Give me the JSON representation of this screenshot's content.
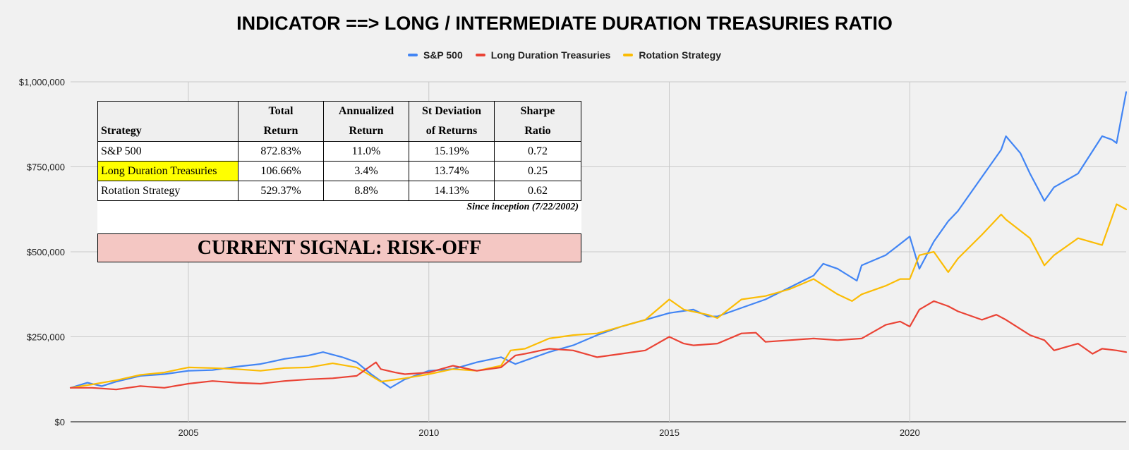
{
  "chart_data": {
    "type": "line",
    "title": "INDICATOR ==> LONG / INTERMEDIATE DURATION TREASURIES RATIO",
    "xlabel": "",
    "ylabel": "",
    "x_range": [
      2002.55,
      2024.5
    ],
    "ylim": [
      0,
      1000000
    ],
    "y_ticks": [
      0,
      250000,
      500000,
      750000,
      1000000
    ],
    "y_tick_labels": [
      "$0",
      "$250,000",
      "$500,000",
      "$750,000",
      "$1,000,000"
    ],
    "x_ticks": [
      2005,
      2010,
      2015,
      2020
    ],
    "x_tick_labels": [
      "2005",
      "2010",
      "2015",
      "2020"
    ],
    "grid": true,
    "legend_position": "top",
    "series": [
      {
        "name": "S&P 500",
        "color": "#4285f4",
        "points": [
          [
            2002.55,
            100000
          ],
          [
            2002.9,
            115000
          ],
          [
            2003.2,
            105000
          ],
          [
            2003.5,
            118000
          ],
          [
            2004.0,
            135000
          ],
          [
            2004.5,
            140000
          ],
          [
            2005.0,
            150000
          ],
          [
            2005.5,
            152000
          ],
          [
            2006.0,
            162000
          ],
          [
            2006.5,
            170000
          ],
          [
            2007.0,
            185000
          ],
          [
            2007.5,
            195000
          ],
          [
            2007.8,
            205000
          ],
          [
            2008.2,
            190000
          ],
          [
            2008.5,
            175000
          ],
          [
            2008.8,
            140000
          ],
          [
            2009.0,
            120000
          ],
          [
            2009.2,
            100000
          ],
          [
            2009.5,
            125000
          ],
          [
            2010.0,
            150000
          ],
          [
            2010.5,
            155000
          ],
          [
            2011.0,
            175000
          ],
          [
            2011.5,
            190000
          ],
          [
            2011.8,
            170000
          ],
          [
            2012.0,
            180000
          ],
          [
            2012.5,
            205000
          ],
          [
            2013.0,
            225000
          ],
          [
            2013.5,
            255000
          ],
          [
            2014.0,
            280000
          ],
          [
            2014.5,
            300000
          ],
          [
            2015.0,
            320000
          ],
          [
            2015.5,
            330000
          ],
          [
            2015.8,
            310000
          ],
          [
            2016.0,
            310000
          ],
          [
            2016.5,
            335000
          ],
          [
            2017.0,
            360000
          ],
          [
            2017.5,
            395000
          ],
          [
            2018.0,
            430000
          ],
          [
            2018.2,
            465000
          ],
          [
            2018.5,
            450000
          ],
          [
            2018.9,
            415000
          ],
          [
            2019.0,
            460000
          ],
          [
            2019.5,
            490000
          ],
          [
            2020.0,
            545000
          ],
          [
            2020.2,
            450000
          ],
          [
            2020.5,
            530000
          ],
          [
            2020.8,
            590000
          ],
          [
            2021.0,
            620000
          ],
          [
            2021.5,
            720000
          ],
          [
            2021.9,
            800000
          ],
          [
            2022.0,
            840000
          ],
          [
            2022.3,
            790000
          ],
          [
            2022.5,
            730000
          ],
          [
            2022.8,
            650000
          ],
          [
            2023.0,
            690000
          ],
          [
            2023.5,
            730000
          ],
          [
            2024.0,
            840000
          ],
          [
            2024.2,
            830000
          ],
          [
            2024.3,
            820000
          ],
          [
            2024.5,
            970000
          ]
        ]
      },
      {
        "name": "Long Duration Treasuries",
        "color": "#ea4335",
        "points": [
          [
            2002.55,
            100000
          ],
          [
            2003.0,
            100000
          ],
          [
            2003.5,
            95000
          ],
          [
            2004.0,
            105000
          ],
          [
            2004.5,
            100000
          ],
          [
            2005.0,
            112000
          ],
          [
            2005.5,
            120000
          ],
          [
            2006.0,
            115000
          ],
          [
            2006.5,
            112000
          ],
          [
            2007.0,
            120000
          ],
          [
            2007.5,
            125000
          ],
          [
            2008.0,
            128000
          ],
          [
            2008.5,
            135000
          ],
          [
            2008.9,
            175000
          ],
          [
            2009.0,
            155000
          ],
          [
            2009.3,
            145000
          ],
          [
            2009.5,
            140000
          ],
          [
            2010.0,
            145000
          ],
          [
            2010.5,
            165000
          ],
          [
            2011.0,
            150000
          ],
          [
            2011.5,
            160000
          ],
          [
            2011.8,
            195000
          ],
          [
            2012.0,
            200000
          ],
          [
            2012.5,
            215000
          ],
          [
            2013.0,
            210000
          ],
          [
            2013.5,
            190000
          ],
          [
            2014.0,
            200000
          ],
          [
            2014.5,
            210000
          ],
          [
            2015.0,
            250000
          ],
          [
            2015.3,
            230000
          ],
          [
            2015.5,
            225000
          ],
          [
            2016.0,
            230000
          ],
          [
            2016.5,
            260000
          ],
          [
            2016.8,
            262000
          ],
          [
            2017.0,
            235000
          ],
          [
            2017.5,
            240000
          ],
          [
            2018.0,
            245000
          ],
          [
            2018.5,
            240000
          ],
          [
            2019.0,
            245000
          ],
          [
            2019.5,
            285000
          ],
          [
            2019.8,
            295000
          ],
          [
            2020.0,
            280000
          ],
          [
            2020.2,
            330000
          ],
          [
            2020.5,
            355000
          ],
          [
            2020.8,
            340000
          ],
          [
            2021.0,
            325000
          ],
          [
            2021.5,
            300000
          ],
          [
            2021.8,
            315000
          ],
          [
            2022.0,
            300000
          ],
          [
            2022.5,
            255000
          ],
          [
            2022.8,
            240000
          ],
          [
            2023.0,
            210000
          ],
          [
            2023.5,
            230000
          ],
          [
            2023.8,
            200000
          ],
          [
            2024.0,
            215000
          ],
          [
            2024.3,
            210000
          ],
          [
            2024.5,
            205000
          ]
        ]
      },
      {
        "name": "Rotation Strategy",
        "color": "#fbbc04",
        "points": [
          [
            2002.55,
            100000
          ],
          [
            2003.0,
            110000
          ],
          [
            2003.5,
            122000
          ],
          [
            2004.0,
            138000
          ],
          [
            2004.5,
            145000
          ],
          [
            2005.0,
            160000
          ],
          [
            2005.5,
            158000
          ],
          [
            2006.0,
            155000
          ],
          [
            2006.5,
            150000
          ],
          [
            2007.0,
            158000
          ],
          [
            2007.5,
            160000
          ],
          [
            2008.0,
            172000
          ],
          [
            2008.5,
            160000
          ],
          [
            2008.8,
            135000
          ],
          [
            2009.0,
            118000
          ],
          [
            2009.5,
            128000
          ],
          [
            2010.0,
            140000
          ],
          [
            2010.5,
            155000
          ],
          [
            2011.0,
            150000
          ],
          [
            2011.5,
            165000
          ],
          [
            2011.7,
            210000
          ],
          [
            2012.0,
            215000
          ],
          [
            2012.5,
            245000
          ],
          [
            2013.0,
            255000
          ],
          [
            2013.5,
            260000
          ],
          [
            2014.0,
            280000
          ],
          [
            2014.5,
            300000
          ],
          [
            2015.0,
            360000
          ],
          [
            2015.3,
            330000
          ],
          [
            2015.8,
            315000
          ],
          [
            2016.0,
            305000
          ],
          [
            2016.5,
            360000
          ],
          [
            2017.0,
            370000
          ],
          [
            2017.5,
            390000
          ],
          [
            2018.0,
            420000
          ],
          [
            2018.5,
            375000
          ],
          [
            2018.8,
            355000
          ],
          [
            2019.0,
            375000
          ],
          [
            2019.5,
            400000
          ],
          [
            2019.8,
            420000
          ],
          [
            2020.0,
            420000
          ],
          [
            2020.2,
            490000
          ],
          [
            2020.5,
            500000
          ],
          [
            2020.8,
            440000
          ],
          [
            2021.0,
            480000
          ],
          [
            2021.5,
            550000
          ],
          [
            2021.9,
            610000
          ],
          [
            2022.0,
            595000
          ],
          [
            2022.5,
            540000
          ],
          [
            2022.8,
            460000
          ],
          [
            2023.0,
            490000
          ],
          [
            2023.5,
            540000
          ],
          [
            2024.0,
            520000
          ],
          [
            2024.2,
            600000
          ],
          [
            2024.3,
            640000
          ],
          [
            2024.5,
            625000
          ]
        ]
      }
    ]
  },
  "stats_table": {
    "headers": [
      {
        "line1": "",
        "line2": "Strategy"
      },
      {
        "line1": "Total",
        "line2": "Return"
      },
      {
        "line1": "Annualized",
        "line2": "Return"
      },
      {
        "line1": "St Deviation",
        "line2": "of Returns"
      },
      {
        "line1": "Sharpe",
        "line2": "Ratio"
      }
    ],
    "rows": [
      {
        "strategy": "S&P 500",
        "total_return": "872.83%",
        "annualized_return": "11.0%",
        "st_deviation": "15.19%",
        "sharpe": "0.72"
      },
      {
        "strategy": "Long Duration Treasuries",
        "total_return": "106.66%",
        "annualized_return": "3.4%",
        "st_deviation": "13.74%",
        "sharpe": "0.25"
      },
      {
        "strategy": "Rotation Strategy",
        "total_return": "529.37%",
        "annualized_return": "8.8%",
        "st_deviation": "14.13%",
        "sharpe": "0.62"
      }
    ],
    "highlight_color": "#ffff00",
    "since_note": "Since inception (7/22/2002)"
  },
  "signal": {
    "text": "CURRENT SIGNAL: RISK-OFF",
    "background": "#f4c7c3"
  }
}
